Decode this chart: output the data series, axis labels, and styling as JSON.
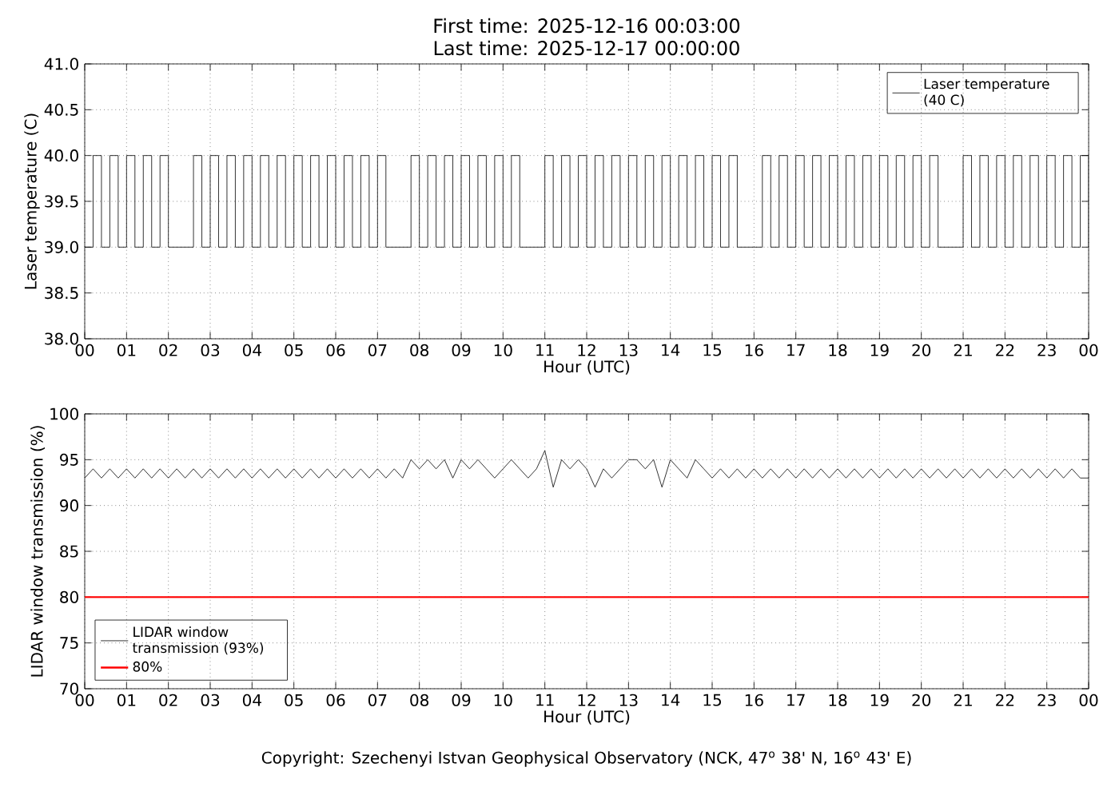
{
  "chart_data": [
    {
      "type": "step",
      "title": "First time: 2025-12-16 00:03:00",
      "subtitle": "Last time: 2025-12-17 00:00:00",
      "xlabel": "Hour (UTC)",
      "ylabel": "Laser temperature (C)",
      "x": [
        0.0,
        0.2,
        0.4,
        0.6,
        0.8,
        1.0,
        1.2,
        1.4,
        1.6,
        1.8,
        2.0,
        2.2,
        2.4,
        2.6,
        2.8,
        3.0,
        3.2,
        3.4,
        3.6,
        3.8,
        4.0,
        4.2,
        4.4,
        4.6,
        4.8,
        5.0,
        5.2,
        5.4,
        5.6,
        5.8,
        6.0,
        6.2,
        6.4,
        6.6,
        6.8,
        7.0,
        7.2,
        7.4,
        7.6,
        7.8,
        8.0,
        8.2,
        8.4,
        8.6,
        8.8,
        9.0,
        9.2,
        9.4,
        9.6,
        9.8,
        10.0,
        10.2,
        10.4,
        10.6,
        10.8,
        11.0,
        11.2,
        11.4,
        11.6,
        11.8,
        12.0,
        12.2,
        12.4,
        12.6,
        12.8,
        13.0,
        13.2,
        13.4,
        13.6,
        13.8,
        14.0,
        14.2,
        14.4,
        14.6,
        14.8,
        15.0,
        15.2,
        15.4,
        15.6,
        15.8,
        16.0,
        16.2,
        16.4,
        16.6,
        16.8,
        17.0,
        17.2,
        17.4,
        17.6,
        17.8,
        18.0,
        18.2,
        18.4,
        18.6,
        18.8,
        19.0,
        19.2,
        19.4,
        19.6,
        19.8,
        20.0,
        20.2,
        20.4,
        20.6,
        20.8,
        21.0,
        21.2,
        21.4,
        21.6,
        21.8,
        22.0,
        22.2,
        22.4,
        22.6,
        22.8,
        23.0,
        23.2,
        23.4,
        23.6,
        23.8,
        24.0
      ],
      "series": [
        {
          "name": "Laser temperature (40 C)",
          "color": "#000000",
          "values": [
            39,
            40,
            39,
            40,
            39,
            40,
            39,
            40,
            39,
            40,
            39,
            39,
            39,
            40,
            39,
            40,
            39,
            40,
            39,
            40,
            39,
            40,
            39,
            40,
            39,
            40,
            39,
            40,
            39,
            40,
            39,
            40,
            39,
            40,
            39,
            40,
            39,
            39,
            39,
            40,
            39,
            40,
            39,
            40,
            39,
            40,
            39,
            40,
            39,
            40,
            39,
            40,
            39,
            39,
            39,
            40,
            39,
            40,
            39,
            40,
            39,
            40,
            39,
            40,
            39,
            40,
            39,
            40,
            39,
            40,
            39,
            40,
            39,
            40,
            39,
            40,
            39,
            40,
            39,
            39,
            39,
            40,
            39,
            40,
            39,
            40,
            39,
            40,
            39,
            40,
            39,
            40,
            39,
            40,
            39,
            40,
            39,
            40,
            39,
            40,
            39,
            40,
            39,
            39,
            39,
            40,
            39,
            40,
            39,
            40,
            39,
            40,
            39,
            40,
            39,
            40,
            39,
            40,
            39,
            40,
            39
          ]
        }
      ],
      "xlim": [
        0,
        24
      ],
      "xticks": [
        {
          "value": 0,
          "label": "00"
        },
        {
          "value": 1,
          "label": "01"
        },
        {
          "value": 2,
          "label": "02"
        },
        {
          "value": 3,
          "label": "03"
        },
        {
          "value": 4,
          "label": "04"
        },
        {
          "value": 5,
          "label": "05"
        },
        {
          "value": 6,
          "label": "06"
        },
        {
          "value": 7,
          "label": "07"
        },
        {
          "value": 8,
          "label": "08"
        },
        {
          "value": 9,
          "label": "09"
        },
        {
          "value": 10,
          "label": "10"
        },
        {
          "value": 11,
          "label": "11"
        },
        {
          "value": 12,
          "label": "12"
        },
        {
          "value": 13,
          "label": "13"
        },
        {
          "value": 14,
          "label": "14"
        },
        {
          "value": 15,
          "label": "15"
        },
        {
          "value": 16,
          "label": "16"
        },
        {
          "value": 17,
          "label": "17"
        },
        {
          "value": 18,
          "label": "18"
        },
        {
          "value": 19,
          "label": "19"
        },
        {
          "value": 20,
          "label": "20"
        },
        {
          "value": 21,
          "label": "21"
        },
        {
          "value": 22,
          "label": "22"
        },
        {
          "value": 23,
          "label": "23"
        },
        {
          "value": 24,
          "label": "00"
        }
      ],
      "ylim": [
        38,
        41
      ],
      "yticks": [
        {
          "value": 38,
          "label": "38.0"
        },
        {
          "value": 38.5,
          "label": "38.5"
        },
        {
          "value": 39,
          "label": "39.0"
        },
        {
          "value": 39.5,
          "label": "39.5"
        },
        {
          "value": 40,
          "label": "40.0"
        },
        {
          "value": 40.5,
          "label": "40.5"
        },
        {
          "value": 41,
          "label": "41.0"
        }
      ],
      "grid": true,
      "legend": "top right",
      "marker": "none",
      "line_style": "solid"
    },
    {
      "type": "line",
      "xlabel": "Hour (UTC)",
      "ylabel": "LIDAR window transmission (%)",
      "x": [
        0.0,
        0.2,
        0.4,
        0.6,
        0.8,
        1.0,
        1.2,
        1.4,
        1.6,
        1.8,
        2.0,
        2.2,
        2.4,
        2.6,
        2.8,
        3.0,
        3.2,
        3.4,
        3.6,
        3.8,
        4.0,
        4.2,
        4.4,
        4.6,
        4.8,
        5.0,
        5.2,
        5.4,
        5.6,
        5.8,
        6.0,
        6.2,
        6.4,
        6.6,
        6.8,
        7.0,
        7.2,
        7.4,
        7.6,
        7.8,
        8.0,
        8.2,
        8.4,
        8.6,
        8.8,
        9.0,
        9.2,
        9.4,
        9.6,
        9.8,
        10.0,
        10.2,
        10.4,
        10.6,
        10.8,
        11.0,
        11.2,
        11.4,
        11.6,
        11.8,
        12.0,
        12.2,
        12.4,
        12.6,
        12.8,
        13.0,
        13.2,
        13.4,
        13.6,
        13.8,
        14.0,
        14.2,
        14.4,
        14.6,
        14.8,
        15.0,
        15.2,
        15.4,
        15.6,
        15.8,
        16.0,
        16.2,
        16.4,
        16.6,
        16.8,
        17.0,
        17.2,
        17.4,
        17.6,
        17.8,
        18.0,
        18.2,
        18.4,
        18.6,
        18.8,
        19.0,
        19.2,
        19.4,
        19.6,
        19.8,
        20.0,
        20.2,
        20.4,
        20.6,
        20.8,
        21.0,
        21.2,
        21.4,
        21.6,
        21.8,
        22.0,
        22.2,
        22.4,
        22.6,
        22.8,
        23.0,
        23.2,
        23.4,
        23.6,
        23.8,
        24.0
      ],
      "series": [
        {
          "name": "LIDAR window transmission (93%)",
          "color": "#000000",
          "values": [
            93,
            94,
            93,
            94,
            93,
            94,
            93,
            94,
            93,
            94,
            93,
            94,
            93,
            94,
            93,
            94,
            93,
            94,
            93,
            94,
            93,
            94,
            93,
            94,
            93,
            94,
            93,
            94,
            93,
            94,
            93,
            94,
            93,
            94,
            93,
            94,
            93,
            94,
            93,
            95,
            94,
            95,
            94,
            95,
            93,
            95,
            94,
            95,
            94,
            93,
            94,
            95,
            94,
            93,
            94,
            96,
            92,
            95,
            94,
            95,
            94,
            92,
            94,
            93,
            94,
            95,
            95,
            94,
            95,
            92,
            95,
            94,
            93,
            95,
            94,
            93,
            94,
            93,
            94,
            93,
            94,
            93,
            94,
            93,
            94,
            93,
            94,
            93,
            94,
            93,
            94,
            93,
            94,
            93,
            94,
            93,
            94,
            93,
            94,
            93,
            94,
            93,
            94,
            93,
            94,
            93,
            94,
            93,
            94,
            93,
            94,
            93,
            94,
            93,
            94,
            93,
            94,
            93,
            94,
            93,
            93
          ]
        }
      ],
      "xlim": [
        0,
        24
      ],
      "xticks": [
        {
          "value": 0,
          "label": "00"
        },
        {
          "value": 1,
          "label": "01"
        },
        {
          "value": 2,
          "label": "02"
        },
        {
          "value": 3,
          "label": "03"
        },
        {
          "value": 4,
          "label": "04"
        },
        {
          "value": 5,
          "label": "05"
        },
        {
          "value": 6,
          "label": "06"
        },
        {
          "value": 7,
          "label": "07"
        },
        {
          "value": 8,
          "label": "08"
        },
        {
          "value": 9,
          "label": "09"
        },
        {
          "value": 10,
          "label": "10"
        },
        {
          "value": 11,
          "label": "11"
        },
        {
          "value": 12,
          "label": "12"
        },
        {
          "value": 13,
          "label": "13"
        },
        {
          "value": 14,
          "label": "14"
        },
        {
          "value": 15,
          "label": "15"
        },
        {
          "value": 16,
          "label": "16"
        },
        {
          "value": 17,
          "label": "17"
        },
        {
          "value": 18,
          "label": "18"
        },
        {
          "value": 19,
          "label": "19"
        },
        {
          "value": 20,
          "label": "20"
        },
        {
          "value": 21,
          "label": "21"
        },
        {
          "value": 22,
          "label": "22"
        },
        {
          "value": 23,
          "label": "23"
        },
        {
          "value": 24,
          "label": "00"
        }
      ],
      "ylim": [
        70,
        100
      ],
      "yticks": [
        70,
        75,
        80,
        85,
        90,
        95,
        100
      ],
      "ref_lines": [
        {
          "axis": "y",
          "value": 80,
          "label": "80%",
          "color": "#ff0000"
        }
      ],
      "annotations": [
        "Copyright: Szechenyi Istvan Geophysical Observatory (NCK, 47$^{o}$ 38' N, 16$^{o}$ 43' E)"
      ],
      "grid": true,
      "legend": "bottom left",
      "marker": "none",
      "line_style": "solid"
    }
  ]
}
